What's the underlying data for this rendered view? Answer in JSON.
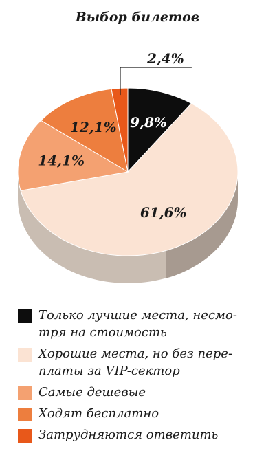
{
  "title": "Выбор билетов",
  "chart_data": {
    "type": "pie",
    "title": "Выбор билетов",
    "slices": [
      {
        "label": "Только лучшие места, несмо-тря на стоимость",
        "value": 9.8,
        "display": "9,8%",
        "color": "#0d0d0d",
        "text_color": "#ffffff"
      },
      {
        "label": "Хорошие места, но без пере-платы за VIP-сектор",
        "value": 61.6,
        "display": "61,6%",
        "color": "#fbe3d3",
        "text_color": "#1a1a1a"
      },
      {
        "label": "Самые дешевые",
        "value": 14.1,
        "display": "14,1%",
        "color": "#f4a171",
        "text_color": "#1a1a1a"
      },
      {
        "label": "Ходят бесплатно",
        "value": 12.1,
        "display": "12,1%",
        "color": "#ed7e3e",
        "text_color": "#1a1a1a"
      },
      {
        "label": "Затрудняются ответить",
        "value": 2.4,
        "display": "2,4%",
        "color": "#e8581a",
        "text_color": "#1a1a1a"
      }
    ]
  },
  "legend": [
    {
      "line1": "Только лучшие места, несмо-",
      "line2": "тря на стоимость",
      "color": "#0d0d0d"
    },
    {
      "line1": "Хорошие места, но без пере-",
      "line2": "платы за VIP-сектор",
      "color": "#fbe3d3"
    },
    {
      "line1": "Самые дешевые",
      "line2": "",
      "color": "#f4a171"
    },
    {
      "line1": "Ходят бесплатно",
      "line2": "",
      "color": "#ed7e3e"
    },
    {
      "line1": "Затрудняются ответить",
      "line2": "",
      "color": "#e8581a"
    }
  ]
}
